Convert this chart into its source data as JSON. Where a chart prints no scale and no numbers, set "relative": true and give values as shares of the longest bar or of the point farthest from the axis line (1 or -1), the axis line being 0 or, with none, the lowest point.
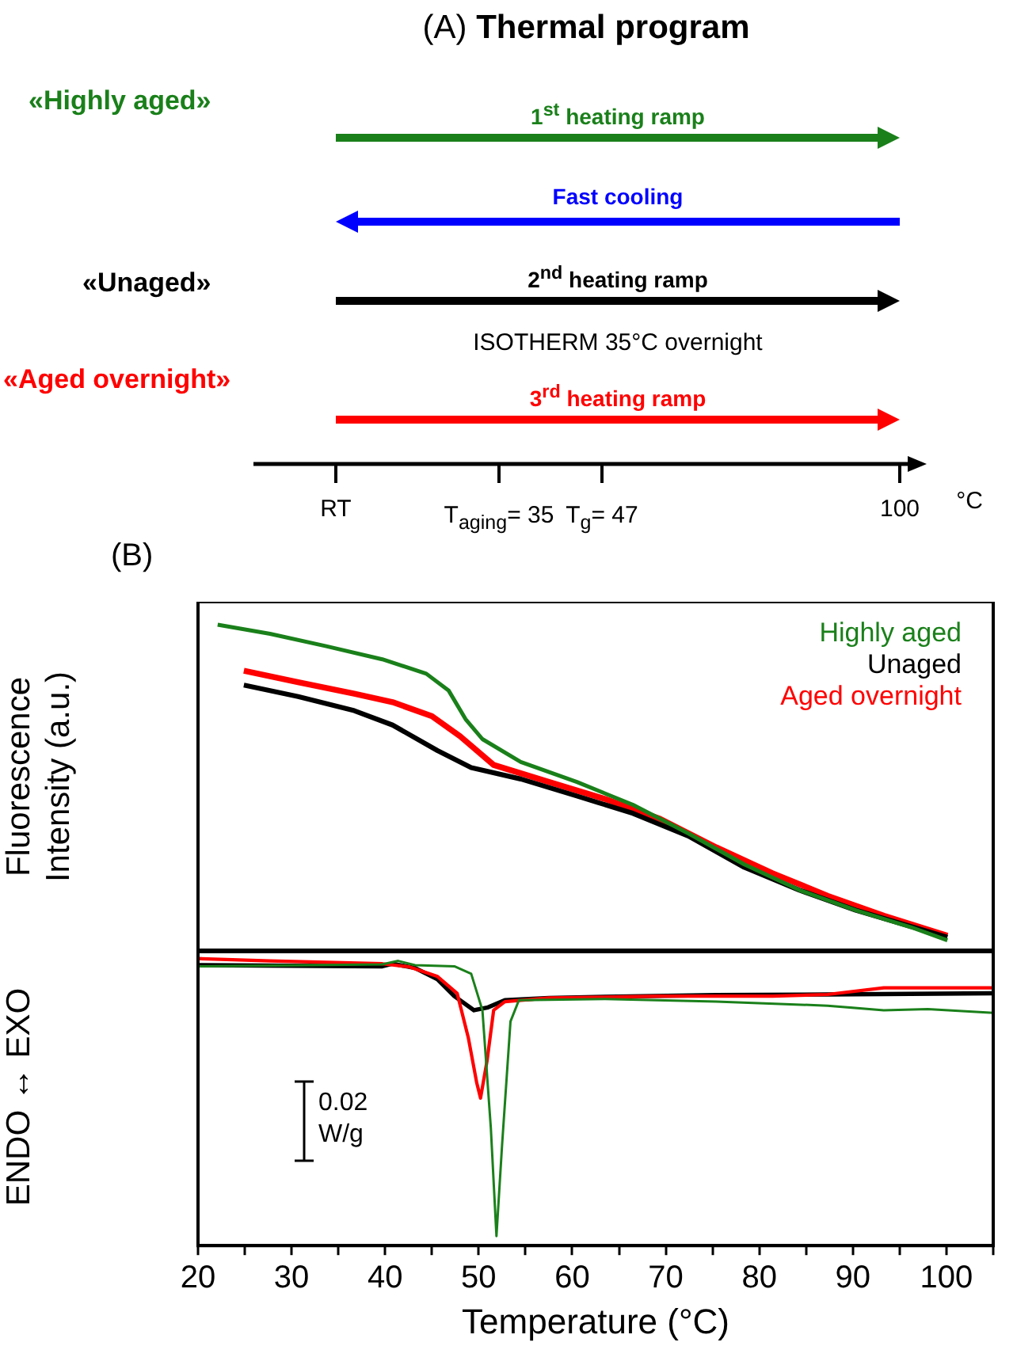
{
  "chart_data": [
    {
      "type": "other",
      "title": "(A) Thermal program",
      "annotations": [
        "«Highly aged»",
        "1$^{st}$ heating ramp",
        "Fast cooling",
        "«Unaged»",
        "2$^{nd}$ heating ramp",
        "ISOTHERM 35°C overnight",
        "«Aged overnight»",
        "3$^{rd}$ heating ramp",
        "RT",
        "T$_{aging}$= 35",
        "T$_{g}$= 47",
        "100",
        "°C"
      ]
    },
    {
      "type": "line",
      "title": "(B)",
      "ylabel": "Fluorescence Intensity (a.u.)",
      "relative": true,
      "xlim": [
        20,
        105
      ],
      "tick_labels": false,
      "grid": false,
      "legend": "top right",
      "marker": "none",
      "line_style": "solid",
      "series": [
        {
          "name": "Highly aged",
          "color": "#1a801a",
          "x": [
            22.1,
            27.7,
            33.7,
            39.7,
            44.4,
            46.8,
            48.6,
            50.4,
            54.5,
            60.5,
            66.5,
            72.4,
            78.4,
            84.3,
            90.3,
            96.2,
            100.1
          ],
          "values": [
            1.0,
            0.972,
            0.934,
            0.894,
            0.85,
            0.798,
            0.711,
            0.65,
            0.58,
            0.519,
            0.449,
            0.362,
            0.267,
            0.188,
            0.127,
            0.075,
            0.035
          ]
        },
        {
          "name": "Unaged",
          "color": "#000000",
          "x": [
            24.9,
            30.7,
            36.7,
            40.8,
            45.6,
            49.2,
            54.5,
            60.5,
            66.5,
            72.4,
            78.4,
            84.3,
            90.3,
            100.1
          ],
          "values": [
            0.815,
            0.78,
            0.737,
            0.693,
            0.615,
            0.563,
            0.528,
            0.476,
            0.423,
            0.354,
            0.258,
            0.188,
            0.127,
            0.044
          ]
        },
        {
          "name": "Aged overnight",
          "color": "#ff0000",
          "x": [
            24.9,
            30.7,
            36.7,
            40.8,
            45.0,
            48.0,
            51.6,
            57.5,
            63.5,
            69.4,
            75.4,
            81.4,
            87.3,
            93.3,
            100.1
          ],
          "values": [
            0.859,
            0.824,
            0.789,
            0.763,
            0.72,
            0.659,
            0.571,
            0.519,
            0.467,
            0.406,
            0.319,
            0.24,
            0.171,
            0.11,
            0.049
          ]
        }
      ]
    },
    {
      "type": "line",
      "xlabel": "Temperature (°C)",
      "ylabel": "ENDO ↔ EXO",
      "relative": true,
      "xlim": [
        20,
        105
      ],
      "xticks": [
        20,
        {
          "value": 25,
          "label": null
        },
        30,
        {
          "value": 35,
          "label": null
        },
        40,
        {
          "value": 45,
          "label": null
        },
        50,
        {
          "value": 55,
          "label": null
        },
        60,
        {
          "value": 65,
          "label": null
        },
        70,
        {
          "value": 75,
          "label": null
        },
        80,
        {
          "value": 85,
          "label": null
        },
        90,
        {
          "value": 95,
          "label": null
        },
        100,
        {
          "value": 105,
          "label": null
        }
      ],
      "tick_labels": "x",
      "grid": false,
      "marker": "none",
      "line_style": "solid",
      "annotations": [
        "0.02 W/g"
      ],
      "series": [
        {
          "color": "#1a801a",
          "x": [
            20,
            39.7,
            41.4,
            43.2,
            47.4,
            49.2,
            50.4,
            51.3,
            51.9,
            52.5,
            53.4,
            54.3,
            63.5,
            75.4,
            87.3,
            93.3,
            98.0,
            105
          ],
          "values": [
            0.973,
            0.98,
            0.992,
            0.977,
            0.973,
            0.947,
            0.82,
            0.41,
            0.033,
            0.35,
            0.781,
            0.855,
            0.859,
            0.85,
            0.836,
            0.82,
            0.824,
            0.811
          ]
        },
        {
          "color": "#ff0000",
          "x": [
            20,
            27.7,
            39.7,
            42.6,
            45.6,
            47.7,
            48.9,
            49.8,
            50.2,
            50.9,
            51.6,
            52.8,
            57.5,
            69.4,
            81.4,
            87.3,
            93.3,
            99.2,
            105
          ],
          "values": [
            1.0,
            0.992,
            0.982,
            0.971,
            0.9375,
            0.879,
            0.723,
            0.566,
            0.514,
            0.645,
            0.82,
            0.85,
            0.863,
            0.869,
            0.869,
            0.875,
            0.898,
            0.898,
            0.898
          ]
        },
        {
          "color": "#000000",
          "x": [
            20,
            39.7,
            40.8,
            43.2,
            45.6,
            47.4,
            49.5,
            51.0,
            52.8,
            57.5,
            63.5,
            75.4,
            87.3,
            105
          ],
          "values": [
            0.977,
            0.973,
            0.982,
            0.967,
            0.928,
            0.869,
            0.82,
            0.83,
            0.855,
            0.863,
            0.867,
            0.873,
            0.875,
            0.879
          ]
        }
      ]
    }
  ]
}
